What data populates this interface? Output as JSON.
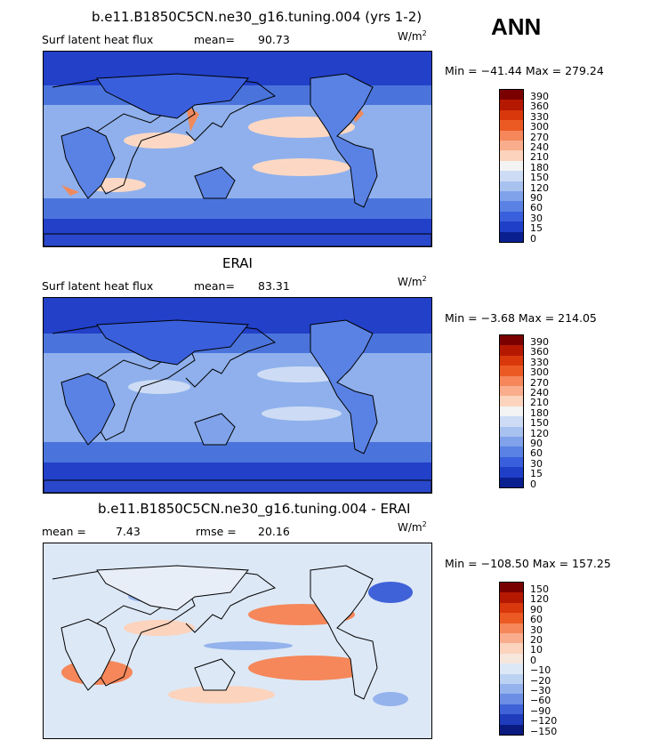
{
  "season": "ANN",
  "units_prefix": "W/m",
  "units_exp": "2",
  "panels": [
    {
      "title": "b.e11.B1850C5CN.ne30_g16.tuning.004 (yrs 1-2)",
      "variable": "Surf latent heat flux",
      "mean_label": "mean=",
      "mean": "90.73",
      "minmax": "Min = −41.44 Max = 279.24",
      "palette": "abs"
    },
    {
      "title": "ERAI",
      "variable": "Surf latent heat flux",
      "mean_label": "mean=",
      "mean": "83.31",
      "minmax": "Min =  −3.68 Max = 214.05",
      "palette": "abs"
    },
    {
      "title": "b.e11.B1850C5CN.ne30_g16.tuning.004 - ERAI",
      "variable": "mean =",
      "mean_label": "",
      "mean": "7.43",
      "rmse_label": "rmse =",
      "rmse": "20.16",
      "minmax": "Min = −108.50 Max = 157.25",
      "palette": "diff"
    }
  ],
  "colorbars": {
    "abs": {
      "levels": [
        "390",
        "360",
        "330",
        "300",
        "270",
        "240",
        "210",
        "180",
        "150",
        "120",
        "90",
        "60",
        "30",
        "15",
        "0"
      ],
      "colors": [
        "#7a0000",
        "#b51800",
        "#d8380c",
        "#ec5a24",
        "#f5875a",
        "#f9ad8c",
        "#fcd3bc",
        "#f3f3f3",
        "#cddcf4",
        "#a8c2f0",
        "#7fa2ea",
        "#5a82e4",
        "#3a5fdc",
        "#1f3fc8",
        "#0a1f90"
      ]
    },
    "diff": {
      "levels": [
        "150",
        "120",
        "90",
        "60",
        "30",
        "20",
        "10",
        "0",
        "−10",
        "−20",
        "−30",
        "−60",
        "−90",
        "−120",
        "−150"
      ],
      "colors": [
        "#7a0000",
        "#b51800",
        "#d8380c",
        "#ec5a24",
        "#f5875a",
        "#f9ad8c",
        "#fcd3bc",
        "#f6e6dc",
        "#dce8f6",
        "#bcd2f2",
        "#94b2ec",
        "#6c8ee4",
        "#3f62d8",
        "#1f3cbc",
        "#0a1a80"
      ]
    }
  },
  "map_colors": {
    "ocean_deep": "#2240c8",
    "ocean_mid": "#4a74dc",
    "ocean_light": "#8fb0ec",
    "warm": "#fcd8c4",
    "hot": "#f08a5c",
    "diff_bg": "#dce8f6",
    "diff_pos": "#f5875a",
    "diff_pos2": "#fcd3bc",
    "diff_neg": "#94b2ec",
    "diff_neg2": "#3f62d8"
  }
}
